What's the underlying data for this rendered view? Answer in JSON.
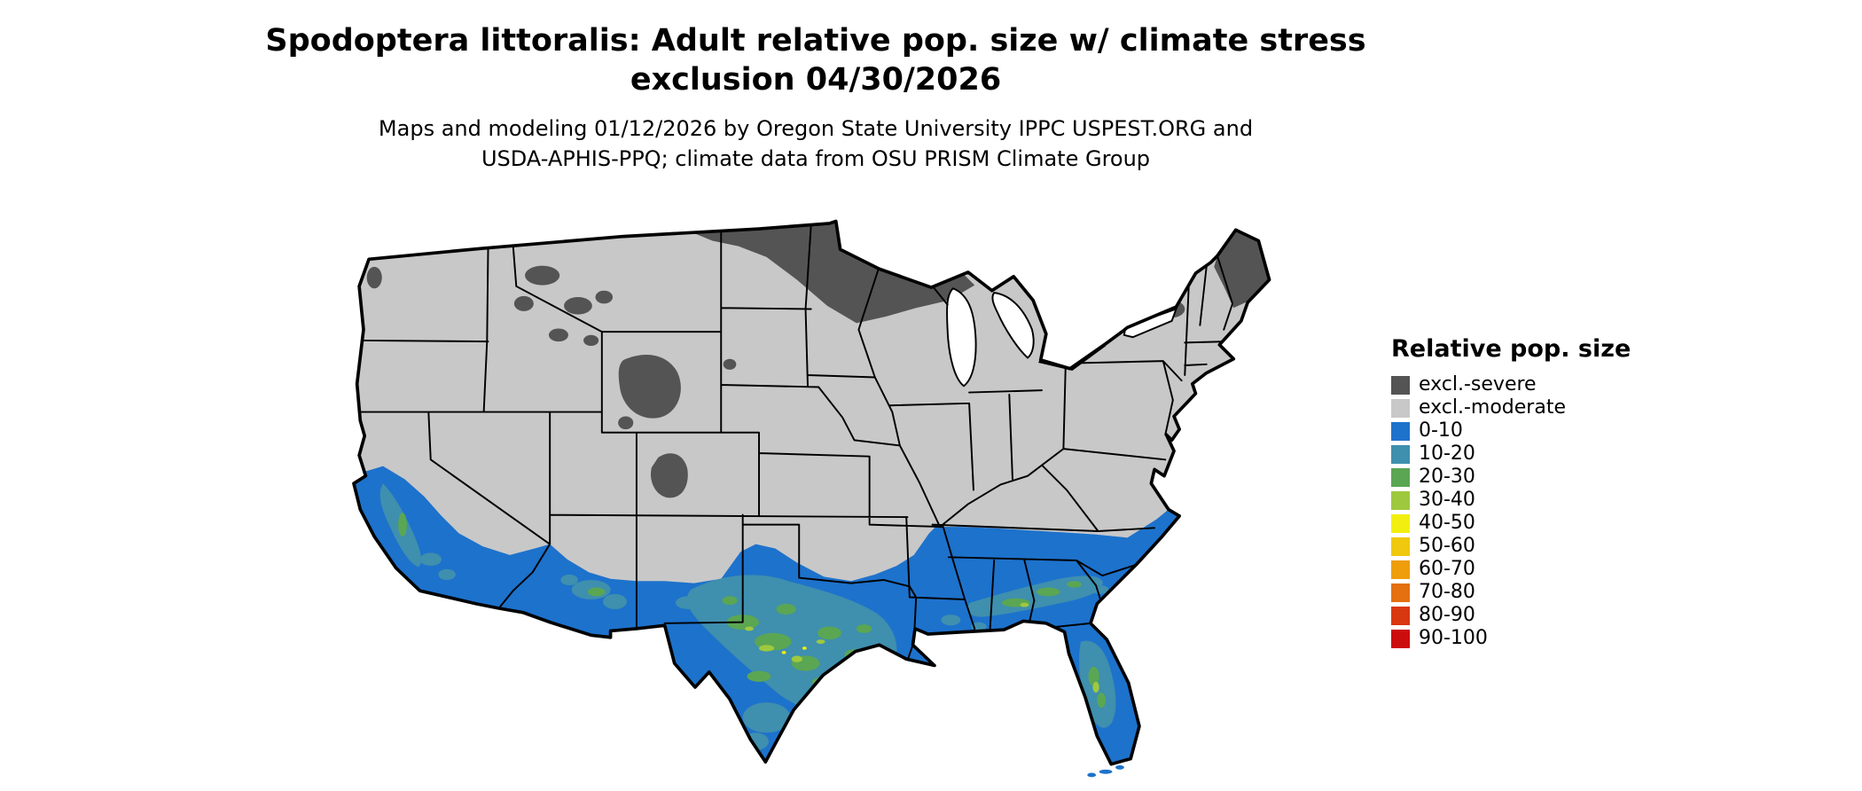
{
  "title": {
    "line1": "Spodoptera littoralis: Adult relative pop. size w/ climate stress",
    "line2": "exclusion 04/30/2026"
  },
  "subtitle": {
    "line1": "Maps and modeling 01/12/2026 by Oregon State University IPPC USPEST.ORG and",
    "line2": "USDA-APHIS-PPQ; climate data from OSU PRISM Climate Group"
  },
  "legend": {
    "title": "Relative pop. size",
    "items": [
      {
        "label": "excl.-severe",
        "color": "#545454"
      },
      {
        "label": "excl.-moderate",
        "color": "#c8c8c8"
      },
      {
        "label": "0-10",
        "color": "#1d72cc"
      },
      {
        "label": "10-20",
        "color": "#3f8fae"
      },
      {
        "label": "20-30",
        "color": "#5ba653"
      },
      {
        "label": "30-40",
        "color": "#9ec93e"
      },
      {
        "label": "40-50",
        "color": "#f2ef10"
      },
      {
        "label": "50-60",
        "color": "#f0c80e"
      },
      {
        "label": "60-70",
        "color": "#ee9d0b"
      },
      {
        "label": "70-80",
        "color": "#e4700f"
      },
      {
        "label": "80-90",
        "color": "#d9370f"
      },
      {
        "label": "90-100",
        "color": "#cc0d0d"
      }
    ]
  }
}
